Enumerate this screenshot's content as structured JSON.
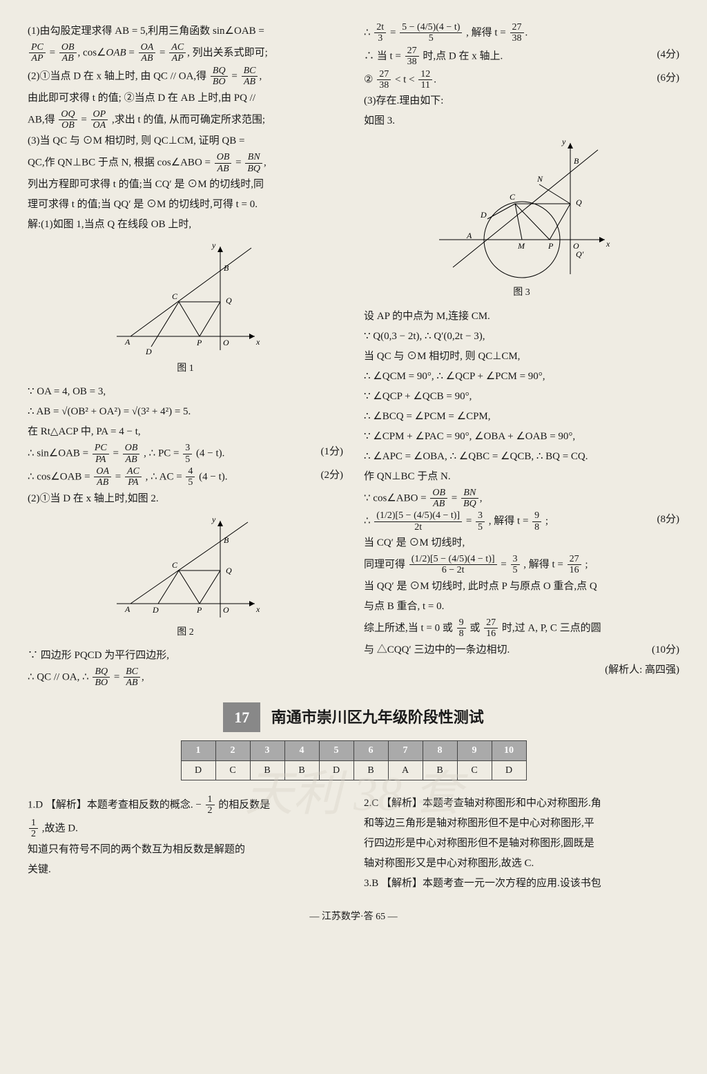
{
  "left": {
    "p1a": "(1)由勾股定理求得 AB = 5,利用三角函数 sin∠OAB =",
    "p1b": "列出关系式即可;",
    "p2a": "(2)①当点 D 在 x 轴上时, 由 QC // OA,得",
    "p2b": "由此即可求得 t 的值; ②当点 D 在 AB 上时,由 PQ //",
    "p2c": "AB,得",
    "p2d": ",求出 t 的值, 从而可确定所求范围;",
    "p3a": "(3)当 QC 与 ⊙M 相切时, 则 QC⊥CM, 证明 QB =",
    "p3b": "QC,作 QN⊥BC 于点 N, 根据 cos∠ABO =",
    "p3c": "列出方程即可求得 t 的值;当 CQ′ 是 ⊙M 的切线时,同",
    "p3d": "理可求得 t 的值;当 QQ′ 是 ⊙M 的切线时,可得 t = 0.",
    "sol1": "解:(1)如图 1,当点 Q 在线段 OB 上时,",
    "fig1": "图 1",
    "l1": "∵ OA = 4, OB = 3,",
    "l2": "∴ AB = √(OB² + OA²) = √(3² + 4²) = 5.",
    "l3": "在 Rt△ACP 中, PA = 4 − t,",
    "l4a": "∴ sin∠OAB =",
    "l4b": ", ∴ PC =",
    "l4c": "(4 − t).",
    "l4score": "(1分)",
    "l5a": "∴ cos∠OAB =",
    "l5b": ", ∴ AC =",
    "l5c": "(4 − t).",
    "l5score": "(2分)",
    "p21": "(2)①当 D 在 x 轴上时,如图 2.",
    "fig2": "图 2",
    "l6": "∵ 四边形 PQCD 为平行四边形,",
    "l7a": "∴ QC // OA, ∴"
  },
  "right": {
    "r1a": "∴",
    "r1b": ", 解得 t =",
    "r2a": "∴ 当 t =",
    "r2b": "时,点 D 在 x 轴上.",
    "r2score": "(4分)",
    "r3a": "②",
    "r3b": "< t <",
    "r3score": "(6分)",
    "r4": "(3)存在.理由如下:",
    "r5": "如图 3.",
    "fig3": "图 3",
    "r6": "设 AP 的中点为 M,连接 CM.",
    "r7": "∵ Q(0,3 − 2t), ∴ Q′(0,2t − 3),",
    "r8": "当 QC 与 ⊙M 相切时, 则 QC⊥CM,",
    "r9": "∴ ∠QCM = 90°, ∴ ∠QCP + ∠PCM = 90°,",
    "r10": "∵ ∠QCP + ∠QCB = 90°,",
    "r11": "∴ ∠BCQ = ∠PCM = ∠CPM,",
    "r12": "∵ ∠CPM + ∠PAC = 90°, ∠OBA + ∠OAB = 90°,",
    "r13": "∴ ∠APC = ∠OBA, ∴ ∠QBC = ∠QCB, ∴ BQ = CQ.",
    "r14": "作 QN⊥BC 于点 N.",
    "r15a": "∵ cos∠ABO =",
    "r16a": "∴",
    "r16b": ", 解得 t =",
    "r16c": ";",
    "r16score": "(8分)",
    "r17": "当 CQ′ 是 ⊙M 切线时,",
    "r18a": "同理可得",
    "r18b": ", 解得 t =",
    "r18c": ";",
    "r19": "当 QQ′ 是 ⊙M 切线时, 此时点 P 与原点 O 重合,点 Q",
    "r20": "与点 B 重合, t = 0.",
    "r21a": "综上所述,当 t = 0 或",
    "r21b": "或",
    "r21c": "时,过 A, P, C 三点的圆",
    "r22": "与 △CQQ′ 三边中的一条边相切.",
    "r22score": "(10分)",
    "author": "(解析人: 高四强)"
  },
  "section": {
    "num": "17",
    "title": "南通市崇川区九年级阶段性测试"
  },
  "answers": {
    "headers": [
      "1",
      "2",
      "3",
      "4",
      "5",
      "6",
      "7",
      "8",
      "9",
      "10"
    ],
    "row": [
      "D",
      "C",
      "B",
      "B",
      "D",
      "B",
      "A",
      "B",
      "C",
      "D"
    ]
  },
  "bottom": {
    "b1a": "1.D 【解析】本题考查相反数的概念. −",
    "b1b": "的相反数是",
    "b1c": ",故选 D.",
    "b1d": "知道只有符号不同的两个数互为相反数是解题的",
    "b1e": "关键.",
    "b2a": "2.C 【解析】本题考查轴对称图形和中心对称图形.角",
    "b2b": "和等边三角形是轴对称图形但不是中心对称图形,平",
    "b2c": "行四边形是中心对称图形但不是轴对称图形,圆既是",
    "b2d": "轴对称图形又是中心对称图形,故选 C.",
    "b3": "3.B 【解析】本题考查一元一次方程的应用.设该书包"
  },
  "footer": "— 江苏数学·答 65 —",
  "watermark": "天利 38 套",
  "fracs": {
    "PC_AP": {
      "num": "PC",
      "den": "AP"
    },
    "OB_AB": {
      "num": "OB",
      "den": "AB"
    },
    "OA_AB": {
      "num": "OA",
      "den": "AB"
    },
    "AC_AP": {
      "num": "AC",
      "den": "AP"
    },
    "BQ_BO": {
      "num": "BQ",
      "den": "BO"
    },
    "BC_AB": {
      "num": "BC",
      "den": "AB"
    },
    "OQ_OB": {
      "num": "OQ",
      "den": "OB"
    },
    "OP_OA": {
      "num": "OP",
      "den": "OA"
    },
    "BN_BQ": {
      "num": "BN",
      "den": "BQ"
    },
    "PC_PA": {
      "num": "PC",
      "den": "PA"
    },
    "AC_PA": {
      "num": "AC",
      "den": "PA"
    },
    "3_5": {
      "num": "3",
      "den": "5"
    },
    "4_5": {
      "num": "4",
      "den": "5"
    },
    "2t_3": {
      "num": "2t",
      "den": "3"
    },
    "27_38": {
      "num": "27",
      "den": "38"
    },
    "12_11": {
      "num": "12",
      "den": "11"
    },
    "9_8": {
      "num": "9",
      "den": "8"
    },
    "27_16": {
      "num": "27",
      "den": "16"
    },
    "1_2": {
      "num": "1",
      "den": "2"
    },
    "big1_num": "5 − (4/5)(4 − t)",
    "big1_den": "5",
    "big2_num": "(1/2)[5 − (4/5)(4 − t)]",
    "big2_den": "2t",
    "big3_num": "(1/2)[5 − (4/5)(4 − t)]",
    "big3_den": "6 − 2t"
  },
  "style": {
    "text_color": "#1a1a1a",
    "page_bg": "#efece3",
    "table_header_bg": "#aaa",
    "section_num_bg": "#888"
  }
}
